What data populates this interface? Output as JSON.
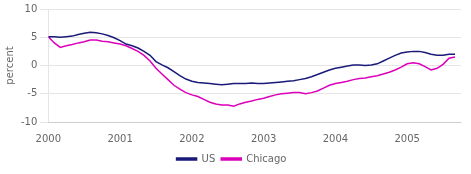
{
  "chart_data": {
    "type": "line",
    "ylabel": "percent",
    "x": [
      2000.0,
      2000.083,
      2000.167,
      2000.25,
      2000.333,
      2000.417,
      2000.5,
      2000.583,
      2000.667,
      2000.75,
      2000.833,
      2000.917,
      2001.0,
      2001.083,
      2001.167,
      2001.25,
      2001.333,
      2001.417,
      2001.5,
      2001.583,
      2001.667,
      2001.75,
      2001.833,
      2001.917,
      2002.0,
      2002.083,
      2002.167,
      2002.25,
      2002.333,
      2002.417,
      2002.5,
      2002.583,
      2002.667,
      2002.75,
      2002.833,
      2002.917,
      2003.0,
      2003.083,
      2003.167,
      2003.25,
      2003.333,
      2003.417,
      2003.5,
      2003.583,
      2003.667,
      2003.75,
      2003.833,
      2003.917,
      2004.0,
      2004.083,
      2004.167,
      2004.25,
      2004.333,
      2004.417,
      2004.5,
      2004.583,
      2004.667,
      2004.75,
      2004.833,
      2004.917,
      2005.0,
      2005.083,
      2005.167,
      2005.25,
      2005.333,
      2005.417,
      2005.5,
      2005.583,
      2005.667
    ],
    "series": [
      {
        "name": "US",
        "color": "#1a1a7a",
        "values": [
          5.1,
          5.1,
          5.0,
          5.1,
          5.2,
          5.5,
          5.7,
          5.9,
          5.8,
          5.6,
          5.3,
          4.9,
          4.4,
          3.8,
          3.5,
          3.1,
          2.5,
          1.8,
          0.7,
          0.1,
          -0.4,
          -1.1,
          -1.8,
          -2.4,
          -2.8,
          -3.0,
          -3.1,
          -3.2,
          -3.3,
          -3.4,
          -3.3,
          -3.2,
          -3.2,
          -3.2,
          -3.1,
          -3.2,
          -3.2,
          -3.1,
          -3.0,
          -2.9,
          -2.8,
          -2.7,
          -2.5,
          -2.3,
          -2.0,
          -1.6,
          -1.2,
          -0.8,
          -0.5,
          -0.3,
          -0.1,
          0.1,
          0.1,
          0.0,
          0.1,
          0.3,
          0.8,
          1.3,
          1.8,
          2.2,
          2.4,
          2.5,
          2.5,
          2.3,
          2.0,
          1.8,
          1.8,
          2.0,
          2.0
        ]
      },
      {
        "name": "Chicago",
        "color": "#dd00bb",
        "values": [
          5.1,
          4.0,
          3.2,
          3.5,
          3.7,
          4.0,
          4.2,
          4.5,
          4.5,
          4.3,
          4.2,
          4.0,
          3.8,
          3.5,
          3.0,
          2.5,
          1.8,
          0.8,
          -0.5,
          -1.5,
          -2.5,
          -3.5,
          -4.2,
          -4.8,
          -5.2,
          -5.5,
          -6.0,
          -6.5,
          -6.8,
          -7.0,
          -7.0,
          -7.2,
          -6.8,
          -6.5,
          -6.3,
          -6.0,
          -5.8,
          -5.5,
          -5.2,
          -5.0,
          -4.9,
          -4.8,
          -4.8,
          -5.0,
          -4.8,
          -4.5,
          -4.0,
          -3.5,
          -3.2,
          -3.0,
          -2.8,
          -2.5,
          -2.3,
          -2.2,
          -2.0,
          -1.8,
          -1.5,
          -1.2,
          -0.8,
          -0.3,
          0.3,
          0.5,
          0.3,
          -0.2,
          -0.8,
          -0.5,
          0.2,
          1.3,
          1.5
        ]
      }
    ],
    "xlim": [
      2000.0,
      2005.75
    ],
    "xticks": [
      2000,
      2001,
      2002,
      2003,
      2004,
      2005
    ],
    "ylim": [
      -10,
      10
    ],
    "yticks": [
      -10,
      -5,
      0,
      5,
      10
    ],
    "grid": "y",
    "legend": "bottom",
    "marker": "none"
  }
}
